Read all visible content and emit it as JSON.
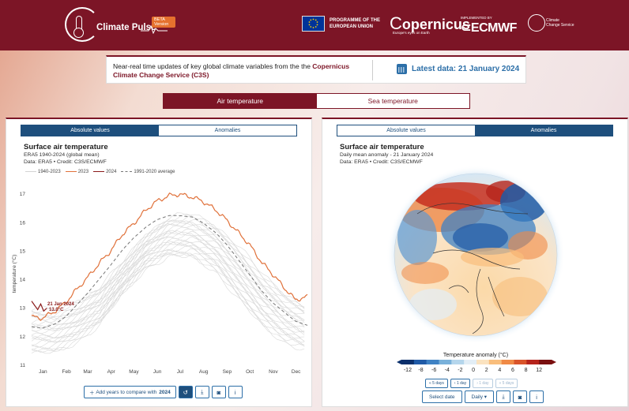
{
  "header": {
    "logo_text": "Climate Pulse",
    "beta_badge": "BETA Version",
    "eu_line1": "PROGRAMME OF THE",
    "eu_line2": "EUROPEAN UNION",
    "copernicus": "opernicus",
    "copernicus_sub": "Europe's eyes on Earth",
    "ecmwf_pre": "IMPLEMENTED BY",
    "ecmwf": "ECMWF",
    "c3s_line1": "Climate",
    "c3s_line2": "Change Service"
  },
  "info": {
    "text_pre": "Near-real time updates of key global climate variables from the the ",
    "text_bold": "Copernicus Climate Change Service (C3S)",
    "latest": "Latest data: 21 January 2024"
  },
  "main_tabs": [
    {
      "label": "Air temperature",
      "active": true
    },
    {
      "label": "Sea temperature",
      "active": false
    }
  ],
  "left_panel": {
    "tabs": [
      {
        "label": "Absolute values",
        "active": true
      },
      {
        "label": "Anomalies",
        "active": false
      }
    ],
    "title": "Surface air temperature",
    "subtitle": "ERA5 1940-2024 (global mean)",
    "credit": "Data: ERA5 • Credit: C3S/ECMWF",
    "buttons": {
      "add_years": "Add years to compare with",
      "add_year_value": "2024"
    }
  },
  "right_panel": {
    "tabs": [
      {
        "label": "Absolute values",
        "active": false
      },
      {
        "label": "Anomalies",
        "active": true
      }
    ],
    "title": "Surface air temperature",
    "subtitle": "Daily mean anomaly - 21 January 2024",
    "credit": "Data: ERA5 • Credit: C3S/ECMWF",
    "colorbar_title": "Temperature anomaly (°C)",
    "colorbar_ticks": [
      "-12",
      "-8",
      "-6",
      "-4",
      "-2",
      "0",
      "2",
      "4",
      "6",
      "8",
      "12"
    ],
    "colorbar_colors": [
      "#0a2f6b",
      "#1f5aa6",
      "#3f82c4",
      "#79b1da",
      "#b5d6ec",
      "#e3eef6",
      "#fbe3c0",
      "#f9be7c",
      "#f08a46",
      "#d9542a",
      "#b5241c",
      "#7a1010"
    ],
    "nav_buttons": [
      "« 5 days",
      "‹ 1 day",
      "› 1 day",
      "» 5 days"
    ],
    "select_date": "Select date",
    "frequency": "Daily"
  },
  "chart_data": {
    "type": "line",
    "title": "Surface air temperature",
    "subtitle": "ERA5 1940-2024 (global mean)",
    "xlabel": "",
    "ylabel": "temperature (°C)",
    "categories": [
      "Jan",
      "Feb",
      "Mar",
      "Apr",
      "May",
      "Jun",
      "Jul",
      "Aug",
      "Sep",
      "Oct",
      "Nov",
      "Dec"
    ],
    "xlim": [
      1,
      366
    ],
    "ylim": [
      11,
      17.2
    ],
    "yticks": [
      11,
      12,
      13,
      14,
      15,
      16,
      17
    ],
    "legend": [
      "1940-2023",
      "2023",
      "2024",
      "1991-2020 average"
    ],
    "legend_position": "top-left",
    "grid": false,
    "annotation": {
      "date": "21 Jan 2024",
      "value": "13.0°C"
    },
    "series": [
      {
        "name": "1991-2020 average",
        "style": "dashed",
        "color": "#777777",
        "x": [
          1,
          15,
          32,
          46,
          60,
          74,
          91,
          105,
          121,
          135,
          152,
          166,
          182,
          196,
          213,
          227,
          244,
          258,
          274,
          288,
          305,
          319,
          335,
          349,
          365
        ],
        "y": [
          12.35,
          12.3,
          12.45,
          12.7,
          13.1,
          13.5,
          14.05,
          14.5,
          15.05,
          15.45,
          15.85,
          16.1,
          16.25,
          16.25,
          16.2,
          16.0,
          15.65,
          15.25,
          14.7,
          14.2,
          13.6,
          13.2,
          12.85,
          12.55,
          12.4
        ]
      },
      {
        "name": "2023",
        "style": "solid",
        "color": "#e0713a",
        "x": [
          1,
          15,
          32,
          46,
          60,
          74,
          91,
          105,
          121,
          135,
          152,
          166,
          182,
          196,
          213,
          227,
          244,
          258,
          274,
          288,
          305,
          319,
          335,
          349,
          365
        ],
        "y": [
          12.7,
          12.65,
          12.9,
          13.2,
          13.65,
          14.05,
          14.6,
          15.0,
          15.6,
          15.95,
          16.45,
          16.75,
          16.95,
          17.0,
          16.9,
          16.75,
          16.45,
          16.1,
          15.65,
          15.25,
          14.6,
          14.2,
          13.7,
          13.3,
          13.4
        ]
      },
      {
        "name": "2024",
        "style": "solid",
        "color": "#8b1a1a",
        "x": [
          1,
          5,
          9,
          13,
          17,
          21
        ],
        "y": [
          13.25,
          13.1,
          12.95,
          13.15,
          12.9,
          13.0
        ]
      },
      {
        "name": "1940-2023",
        "style": "band",
        "color": "#d9d9d9",
        "x": [
          1,
          32,
          60,
          91,
          121,
          152,
          182,
          213,
          244,
          274,
          305,
          335,
          365
        ],
        "y_low": [
          11.4,
          11.45,
          11.8,
          12.4,
          13.5,
          14.4,
          14.8,
          14.8,
          14.3,
          13.3,
          12.4,
          11.8,
          11.5
        ],
        "y_high": [
          13.0,
          12.95,
          13.25,
          13.75,
          14.6,
          15.6,
          16.2,
          16.3,
          15.9,
          15.2,
          14.2,
          13.5,
          13.05
        ]
      }
    ]
  }
}
